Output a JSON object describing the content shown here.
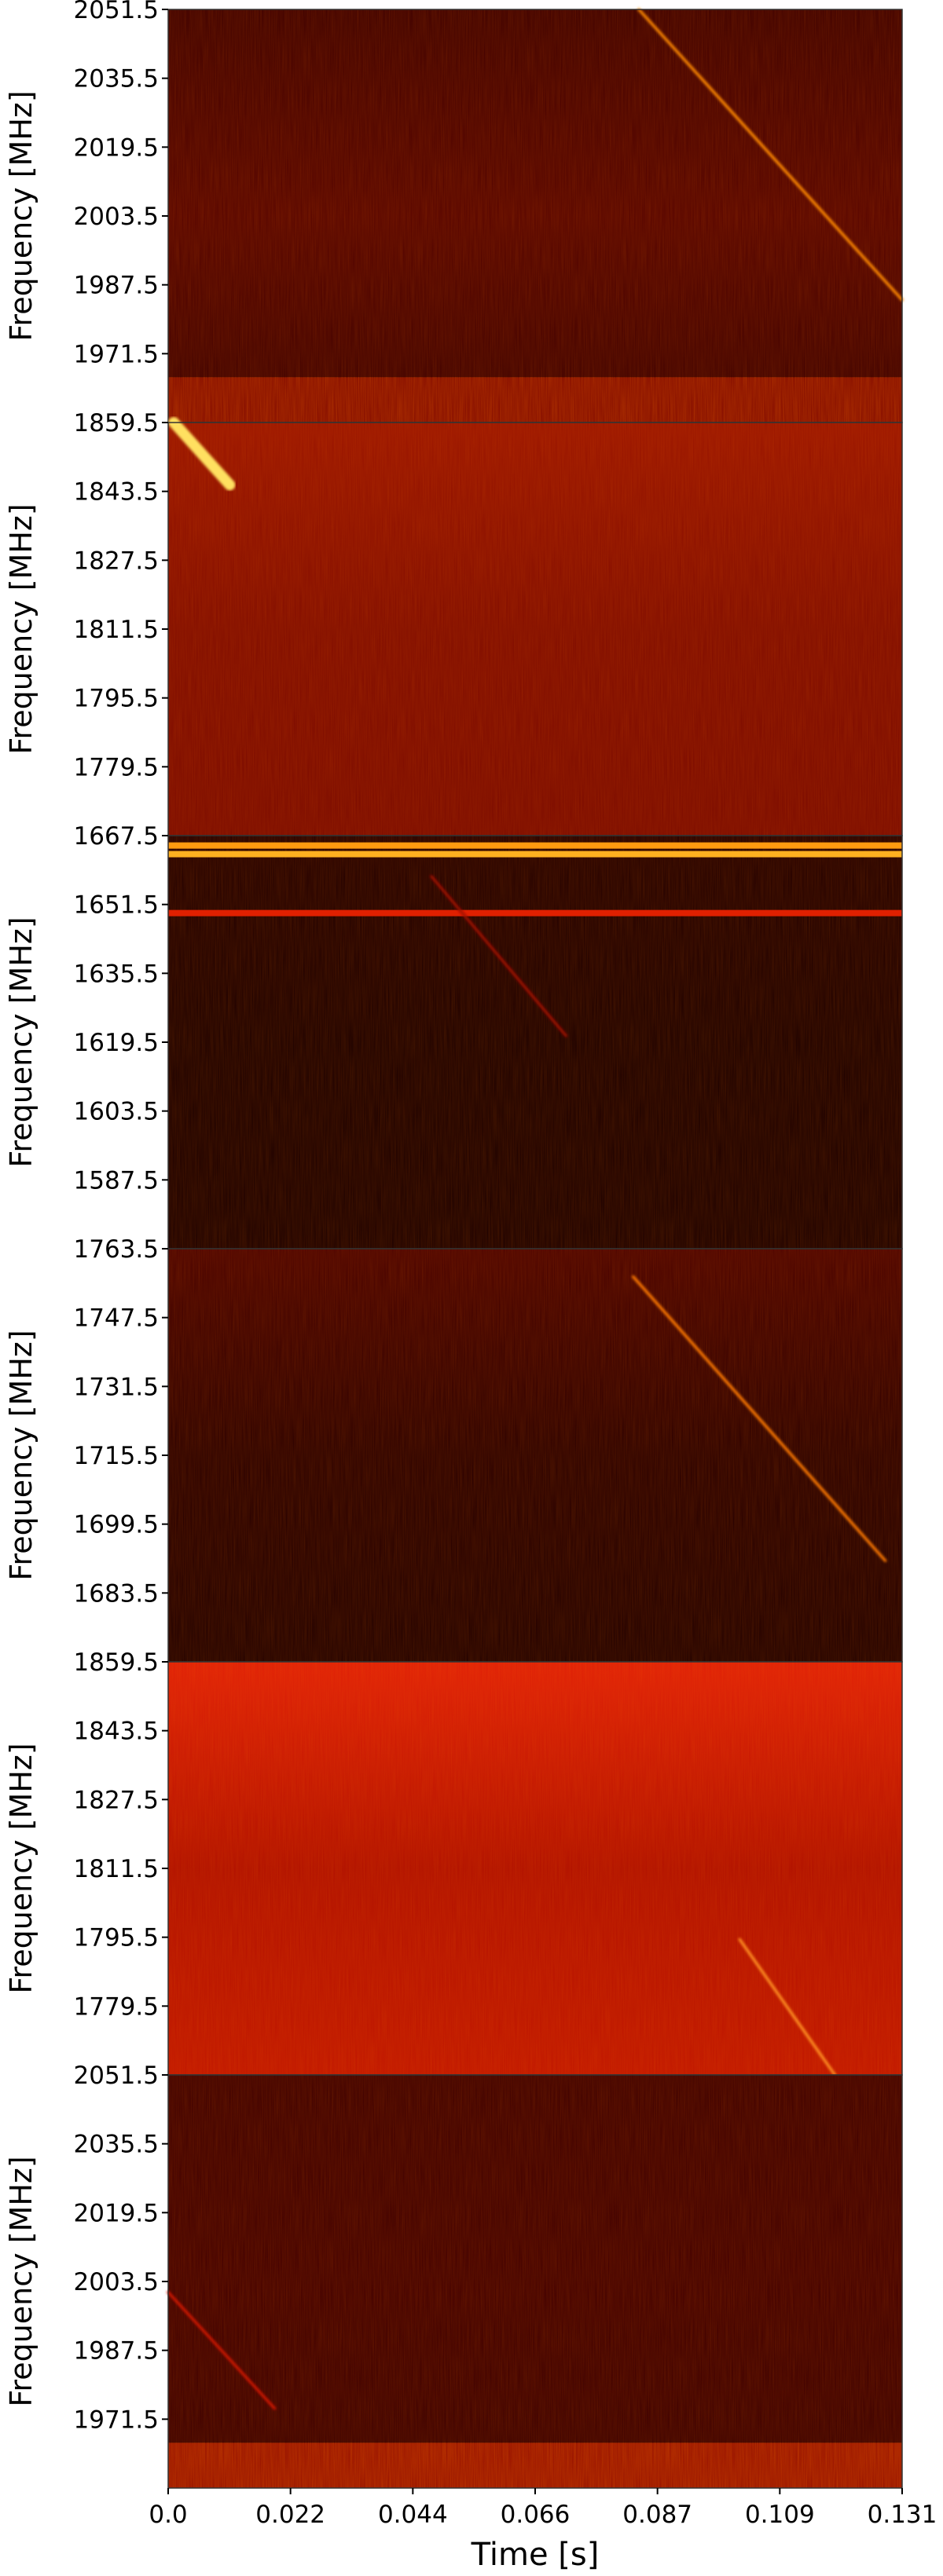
{
  "chart_data": {
    "type": "heatmap",
    "colormap": "hot",
    "xlabel": "Time [s]",
    "ylabel": "Frequency [MHz]",
    "xlim": [
      0.0,
      0.131
    ],
    "xticks": [
      "0.0",
      "0.022",
      "0.044",
      "0.066",
      "0.087",
      "0.109",
      "0.131"
    ],
    "panels": [
      {
        "ylim": [
          2051.5,
          1955.5
        ],
        "yticks": [
          "2051.5",
          "2035.5",
          "2019.5",
          "2003.5",
          "1987.5",
          "1971.5"
        ],
        "background": [
          "#3e0000",
          "#560400",
          "#3a0000"
        ],
        "band": {
          "from": 1966,
          "to": 1955.5,
          "color": "#8a0c00"
        },
        "sweeps": [
          {
            "t0": 0.084,
            "f0": 2051.5,
            "t1": 0.131,
            "f1": 1984,
            "color": "#ff8a00"
          }
        ]
      },
      {
        "ylim": [
          1859.5,
          1763.5
        ],
        "yticks": [
          "1859.5",
          "1843.5",
          "1827.5",
          "1811.5",
          "1795.5",
          "1779.5"
        ],
        "background": [
          "#9a1400",
          "#800c00",
          "#7a0a00"
        ],
        "sweeps": [
          {
            "t0": 0.001,
            "f0": 1859.5,
            "t1": 0.011,
            "f1": 1845,
            "color": "#ffe060",
            "width": 14
          }
        ]
      },
      {
        "ylim": [
          1667.5,
          1571.5
        ],
        "yticks": [
          "1667.5",
          "1651.5",
          "1635.5",
          "1619.5",
          "1603.5",
          "1587.5"
        ],
        "background": [
          "#240000",
          "#1c0000",
          "#1c0000"
        ],
        "lines": [
          {
            "f": 1665.2,
            "color": "#ff9a10"
          },
          {
            "f": 1663.2,
            "color": "#ffb020"
          },
          {
            "f": 1649.5,
            "color": "#e02000"
          }
        ],
        "sweeps": [
          {
            "t0": 0.047,
            "f0": 1658,
            "t1": 0.071,
            "f1": 1621,
            "color": "#a01000"
          }
        ]
      },
      {
        "ylim": [
          1763.5,
          1667.5
        ],
        "yticks": [
          "1763.5",
          "1747.5",
          "1731.5",
          "1715.5",
          "1699.5",
          "1683.5"
        ],
        "background": [
          "#4a0200",
          "#2a0000",
          "#200000"
        ],
        "sweeps": [
          {
            "t0": 0.083,
            "f0": 1757,
            "t1": 0.128,
            "f1": 1691,
            "color": "#ff7a00"
          }
        ]
      },
      {
        "ylim": [
          1859.5,
          1763.5
        ],
        "yticks": [
          "1859.5",
          "1843.5",
          "1827.5",
          "1811.5",
          "1795.5",
          "1779.5"
        ],
        "background": [
          "#e02008",
          "#b01000",
          "#c01600"
        ],
        "sweeps": [
          {
            "t0": 0.102,
            "f0": 1795,
            "t1": 0.119,
            "f1": 1763.5,
            "color": "#ff9020"
          }
        ]
      },
      {
        "ylim": [
          2051.5,
          1955.5
        ],
        "yticks": [
          "2051.5",
          "2035.5",
          "2019.5",
          "2003.5",
          "1987.5",
          "1971.5"
        ],
        "background": [
          "#3e0000",
          "#420000",
          "#3a0000"
        ],
        "band": {
          "from": 1966,
          "to": 1955.5,
          "color": "#a01400"
        },
        "sweeps": [
          {
            "t0": 0.0,
            "f0": 2001,
            "t1": 0.019,
            "f1": 1974,
            "color": "#d01800"
          }
        ]
      }
    ]
  }
}
